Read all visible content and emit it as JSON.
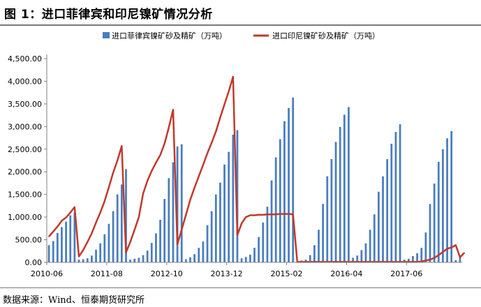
{
  "title": "图 1：进口菲律宾和印尼镍矿情况分析",
  "source": "数据来源：Wind、恒泰期货研究所",
  "chart_data": {
    "type": "bar",
    "title": "",
    "xlabel": "",
    "ylabel": "",
    "ylim": [
      0,
      4500
    ],
    "grid": false,
    "legend_position": "top",
    "y_ticks": [
      "0.00",
      "500.00",
      "1,000.00",
      "1,500.00",
      "2,000.00",
      "2,500.00",
      "3,000.00",
      "3,500.00",
      "4,000.00",
      "4,500.00"
    ],
    "x_tick_labels": [
      "2010-06",
      "2011-08",
      "2012-10",
      "2013-12",
      "2015-02",
      "2016-04",
      "2017-06"
    ],
    "x_tick_indices": [
      0,
      14,
      28,
      42,
      56,
      70,
      84
    ],
    "categories_start": "2010-06",
    "series": [
      {
        "name": "进口菲律宾镍矿砂及精矿（万吨）",
        "kind": "bar",
        "color": "#4a7dbe",
        "values": [
          380,
          470,
          650,
          780,
          900,
          1040,
          1100,
          60,
          70,
          90,
          150,
          280,
          420,
          620,
          850,
          1130,
          1500,
          1720,
          2060,
          60,
          80,
          100,
          160,
          260,
          430,
          640,
          940,
          1400,
          1860,
          2210,
          2560,
          2610,
          70,
          110,
          180,
          320,
          460,
          820,
          1130,
          1500,
          1760,
          2160,
          2440,
          2820,
          2920,
          90,
          120,
          170,
          320,
          560,
          880,
          1230,
          1810,
          2320,
          2720,
          3120,
          3410,
          3640,
          30,
          40,
          60,
          160,
          380,
          720,
          1290,
          1900,
          2280,
          2660,
          2990,
          3260,
          3430,
          100,
          150,
          270,
          420,
          720,
          1060,
          1560,
          1900,
          2280,
          2620,
          2880,
          3050,
          60,
          80,
          140,
          200,
          320,
          660,
          1290,
          1740,
          2220,
          2500,
          2740,
          2900,
          50,
          140
        ]
      },
      {
        "name": "进口印尼镍矿砂及精矿（万吨）",
        "kind": "line",
        "color": "#c0392b",
        "values": [
          570,
          680,
          790,
          920,
          990,
          1100,
          1220,
          130,
          270,
          450,
          640,
          880,
          1100,
          1350,
          1660,
          1980,
          2250,
          2570,
          220,
          450,
          720,
          1000,
          1520,
          1800,
          2020,
          2200,
          2370,
          2620,
          2980,
          3370,
          400,
          720,
          1050,
          1380,
          1650,
          1900,
          2150,
          2410,
          2640,
          2890,
          3200,
          3490,
          3780,
          4100,
          600,
          860,
          1000,
          1040,
          1040,
          1050,
          1050,
          1060,
          1060,
          1060,
          1070,
          1070,
          1070,
          1060,
          10,
          10,
          10,
          10,
          10,
          10,
          10,
          10,
          10,
          10,
          10,
          10,
          10,
          10,
          10,
          10,
          10,
          10,
          10,
          10,
          10,
          10,
          10,
          10,
          10,
          10,
          10,
          10,
          10,
          20,
          40,
          60,
          100,
          160,
          230,
          300,
          330,
          380,
          110,
          210
        ]
      }
    ]
  }
}
